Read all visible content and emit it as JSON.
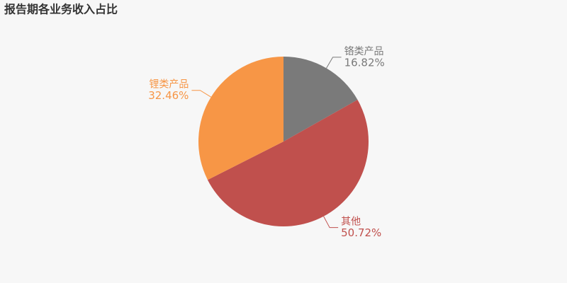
{
  "chart_data": {
    "type": "pie",
    "title": "报告期各业务收入占比",
    "categories": [
      "铬类产品",
      "其他",
      "锂类产品"
    ],
    "values": [
      16.82,
      50.72,
      32.46
    ],
    "value_labels": [
      "16.82%",
      "50.72%",
      "32.46%"
    ],
    "colors": [
      "#7a7a7a",
      "#c0504d",
      "#f79646"
    ]
  }
}
